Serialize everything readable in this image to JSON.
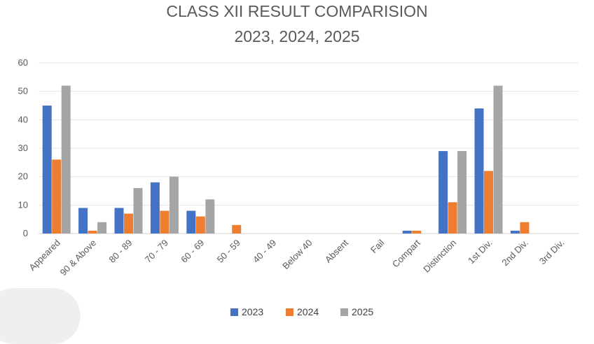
{
  "chart_data": {
    "type": "bar",
    "title_lines": [
      "CLASS XII RESULT COMPARISION",
      "2023, 2024, 2025"
    ],
    "categories": [
      "Appeared",
      "90 & Above",
      "80 - 89",
      "70 - 79",
      "60 - 69",
      "50 - 59",
      "40 - 49",
      "Below 40",
      "Absent",
      "Fail",
      "Compart",
      "Distinction",
      "1st Div.",
      "2nd Div.",
      "3rd Div."
    ],
    "series": [
      {
        "name": "2023",
        "color": "#4472C4",
        "values": [
          45,
          9,
          9,
          18,
          8,
          0,
          0,
          0,
          0,
          0,
          1,
          29,
          44,
          1,
          0
        ]
      },
      {
        "name": "2024",
        "color": "#ED7D31",
        "values": [
          26,
          1,
          7,
          8,
          6,
          3,
          0,
          0,
          0,
          0,
          1,
          11,
          22,
          4,
          0
        ]
      },
      {
        "name": "2025",
        "color": "#A5A5A5",
        "values": [
          52,
          4,
          16,
          20,
          12,
          0,
          0,
          0,
          0,
          0,
          0,
          29,
          52,
          0,
          0
        ]
      }
    ],
    "y_ticks": [
      "0",
      "10",
      "20",
      "30",
      "40",
      "50",
      "60"
    ],
    "ylim": [
      0,
      60
    ],
    "grid": true,
    "legend_position": "bottom",
    "xlabel": "",
    "ylabel": ""
  }
}
